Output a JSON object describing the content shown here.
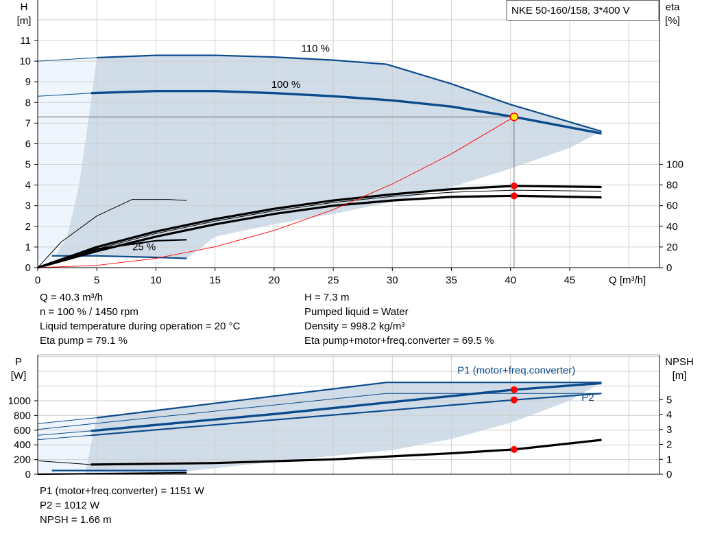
{
  "model_label": "NKE 50-160/158, 3*400 V",
  "colors": {
    "curve": "#0b4a8b",
    "shade": "#d0dce8",
    "shade_light": "#eef5fc",
    "marker": "#ff0000",
    "op_point": "#ffee00",
    "system": "#ff0000"
  },
  "chart_data": [
    {
      "type": "line",
      "title": "",
      "xlabel": "Q [m³/h]",
      "ylabel": "H\n[m]",
      "y2label": "eta\n[%]",
      "xlim": [
        0,
        52.6
      ],
      "ylim": [
        0,
        12.96
      ],
      "y2lim": [
        0,
        259
      ],
      "grid": true,
      "x_ticks": [
        0,
        5,
        10,
        15,
        20,
        25,
        30,
        35,
        40,
        45
      ],
      "y_ticks": [
        0,
        1,
        2,
        3,
        4,
        5,
        6,
        7,
        8,
        9,
        10,
        11
      ],
      "y2_ticks": [
        0,
        20,
        40,
        60,
        80,
        100
      ],
      "x_axis_label": "Q [m³/h]",
      "y_axis_label": [
        "H",
        "[m]"
      ],
      "y2_axis_label": [
        "eta",
        "[%]"
      ],
      "annotations": [
        {
          "text": "110 %",
          "x": 23.5,
          "y": 10.35
        },
        {
          "text": "100 %",
          "x": 21,
          "y": 8.6
        },
        {
          "text": "25 %",
          "x": 9,
          "y": 0.75
        }
      ],
      "series": [
        {
          "axis": "H",
          "style": "thin-blue",
          "points": [
            [
              0,
              10
            ],
            [
              5,
              10.17
            ]
          ]
        },
        {
          "axis": "H",
          "style": "blue",
          "points": [
            [
              5,
              10.17
            ],
            [
              10,
              10.28
            ],
            [
              15,
              10.28
            ],
            [
              20,
              10.2
            ],
            [
              25,
              10.05
            ],
            [
              29.5,
              9.85
            ],
            [
              35,
              8.9
            ],
            [
              40,
              7.9
            ],
            [
              47.7,
              6.6
            ]
          ]
        },
        {
          "axis": "H",
          "style": "thin-blue",
          "points": [
            [
              0,
              8.3
            ],
            [
              4.5,
              8.45
            ]
          ]
        },
        {
          "axis": "H",
          "style": "thick-blue",
          "points": [
            [
              4.5,
              8.45
            ],
            [
              10,
              8.55
            ],
            [
              15,
              8.55
            ],
            [
              20,
              8.45
            ],
            [
              25,
              8.3
            ],
            [
              30,
              8.1
            ],
            [
              35,
              7.8
            ],
            [
              40.3,
              7.3
            ],
            [
              47.7,
              6.5
            ]
          ]
        },
        {
          "axis": "H",
          "style": "blue",
          "points": [
            [
              1.2,
              0.57
            ],
            [
              5,
              0.57
            ],
            [
              10,
              0.5
            ],
            [
              12.6,
              0.45
            ]
          ]
        },
        {
          "axis": "eta",
          "style": "thick-black",
          "points": [
            [
              0,
              0
            ],
            [
              5,
              20
            ],
            [
              10,
              35
            ],
            [
              15,
              47
            ],
            [
              20,
              57
            ],
            [
              25,
              65
            ],
            [
              30,
              71
            ],
            [
              35,
              76
            ],
            [
              40.3,
              79.1
            ],
            [
              47.7,
              78
            ]
          ]
        },
        {
          "axis": "eta",
          "style": "thin-black",
          "points": [
            [
              0,
              0
            ],
            [
              5,
              18
            ],
            [
              10,
              33
            ],
            [
              15,
              45
            ],
            [
              20,
              55
            ],
            [
              25,
              63
            ],
            [
              30,
              69
            ],
            [
              35,
              73
            ],
            [
              40.3,
              75
            ],
            [
              47.7,
              74
            ]
          ]
        },
        {
          "axis": "eta",
          "style": "thick-black",
          "points": [
            [
              0,
              0
            ],
            [
              5,
              16
            ],
            [
              10,
              30
            ],
            [
              15,
              42
            ],
            [
              20,
              52
            ],
            [
              25,
              60
            ],
            [
              30,
              65
            ],
            [
              35,
              68.5
            ],
            [
              40.3,
              69.5
            ],
            [
              47.7,
              68
            ]
          ]
        },
        {
          "axis": "eta",
          "style": "thin-black",
          "points": [
            [
              0,
              0
            ],
            [
              2,
              25
            ],
            [
              5,
              50
            ],
            [
              8,
              66
            ],
            [
              11,
              66
            ],
            [
              12.6,
              65
            ]
          ]
        },
        {
          "axis": "eta",
          "style": "black",
          "points": [
            [
              0,
              0
            ],
            [
              5,
              18
            ],
            [
              10,
              26
            ],
            [
              12.6,
              27
            ]
          ]
        },
        {
          "axis": "H",
          "style": "system",
          "points": [
            [
              0,
              0
            ],
            [
              5,
              0.11
            ],
            [
              10,
              0.45
            ],
            [
              15,
              1.01
            ],
            [
              20,
              1.8
            ],
            [
              25,
              2.81
            ],
            [
              30,
              4.05
            ],
            [
              35,
              5.51
            ],
            [
              40.3,
              7.3
            ]
          ]
        }
      ],
      "operating_point": {
        "Q": 40.3,
        "H": 7.3,
        "eta_pump": 79.1,
        "eta_total": 69.5
      }
    },
    {
      "type": "line",
      "title": "",
      "xlim": [
        0,
        52.6
      ],
      "ylim": [
        0,
        1626
      ],
      "y2lim": [
        0,
        8.0
      ],
      "grid": true,
      "y_ticks": [
        0,
        200,
        400,
        600,
        800,
        1000
      ],
      "y2_ticks": [
        0,
        1,
        2,
        3,
        4,
        5
      ],
      "y_axis_label": [
        "P",
        "[W]"
      ],
      "y2_axis_label": [
        "NPSH",
        "[m]"
      ],
      "annotations": [
        {
          "text": "P1 (motor+freq.converter)",
          "x": 35.5,
          "y": 1370
        },
        {
          "text": "P2",
          "x": 46,
          "y": 1000
        }
      ],
      "series": [
        {
          "axis": "P",
          "style": "thin-blue",
          "points": [
            [
              0,
              690
            ],
            [
              5,
              770
            ]
          ]
        },
        {
          "axis": "P",
          "style": "blue",
          "points": [
            [
              5,
              770
            ],
            [
              29.5,
              1250
            ],
            [
              47.7,
              1250
            ]
          ]
        },
        {
          "axis": "P",
          "style": "thin-blue",
          "points": [
            [
              0,
              610
            ],
            [
              29.5,
              1100
            ],
            [
              47.7,
              1100
            ]
          ]
        },
        {
          "axis": "P",
          "style": "thin-blue",
          "points": [
            [
              0,
              530
            ],
            [
              4.5,
              590
            ]
          ]
        },
        {
          "axis": "P",
          "style": "thick-blue",
          "points": [
            [
              4.5,
              590
            ],
            [
              20,
              820
            ],
            [
              40.3,
              1151
            ],
            [
              47.7,
              1240
            ]
          ]
        },
        {
          "axis": "P",
          "style": "thin-blue",
          "points": [
            [
              0,
              470
            ],
            [
              4.5,
              530
            ]
          ]
        },
        {
          "axis": "P",
          "style": "blue",
          "points": [
            [
              4.5,
              530
            ],
            [
              20,
              740
            ],
            [
              40.3,
              1012
            ],
            [
              47.7,
              1100
            ]
          ]
        },
        {
          "axis": "P",
          "style": "blue",
          "points": [
            [
              1.2,
              50
            ],
            [
              12.6,
              50
            ]
          ]
        },
        {
          "axis": "P",
          "style": "black",
          "points": [
            [
              0,
              0
            ],
            [
              12.6,
              20
            ]
          ]
        },
        {
          "axis": "NPSH",
          "style": "thin-black",
          "points": [
            [
              0,
              0.9
            ],
            [
              4.5,
              0.65
            ]
          ]
        },
        {
          "axis": "NPSH",
          "style": "thick-black",
          "points": [
            [
              4.5,
              0.65
            ],
            [
              15,
              0.75
            ],
            [
              25,
              1.0
            ],
            [
              30,
              1.2
            ],
            [
              35,
              1.4
            ],
            [
              40.3,
              1.66
            ],
            [
              47.7,
              2.3
            ]
          ]
        }
      ],
      "operating_point": {
        "Q": 40.3,
        "P1": 1151,
        "P2": 1012,
        "NPSH": 1.66
      }
    }
  ],
  "info_top": {
    "left": [
      "Q = 40.3 m³/h",
      "n = 100 % / 1450 rpm",
      "Liquid temperature during operation = 20 °C",
      "Eta pump = 79.1 %"
    ],
    "right": [
      "H = 7.3 m",
      "Pumped liquid = Water",
      "Density = 998.2 kg/m³",
      "Eta pump+motor+freq.converter = 69.5 %"
    ]
  },
  "info_bottom": [
    "P1 (motor+freq.converter) = 1151 W",
    "P2 = 1012 W",
    "NPSH = 1.66 m"
  ]
}
